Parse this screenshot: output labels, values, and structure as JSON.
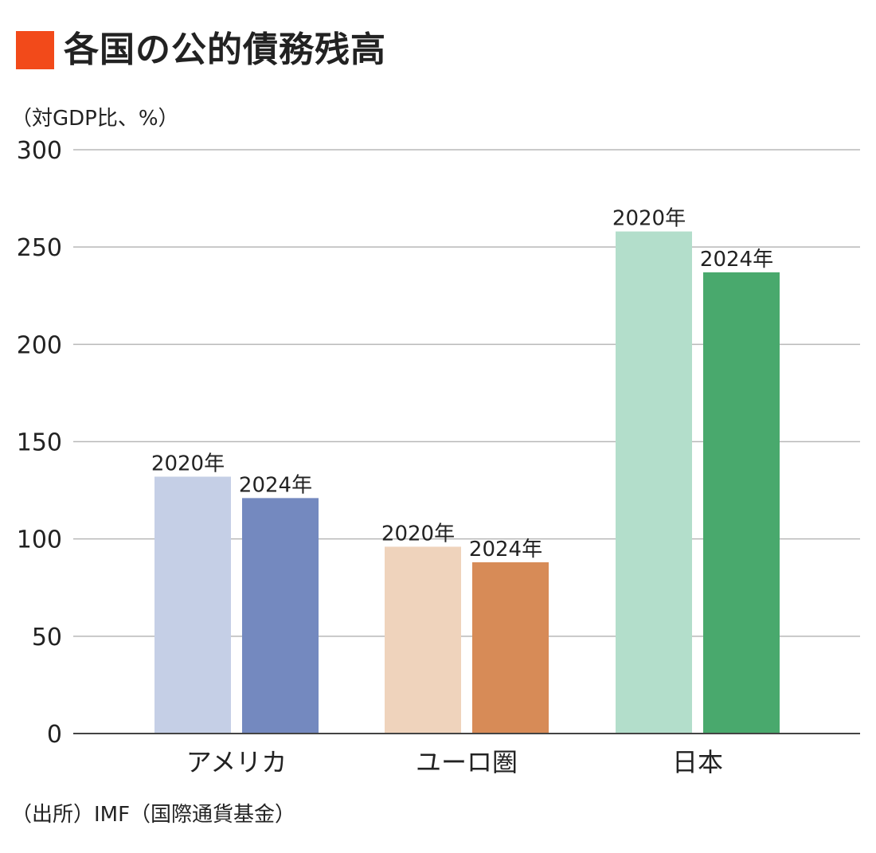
{
  "title": "各国の公的債務残高",
  "unit_label": "（対GDP比、%）",
  "source": "（出所）IMF（国際通貨基金）",
  "colors": {
    "title_marker": "#f24a1a",
    "grid": "#b8b8b8",
    "axis": "#444444"
  },
  "chart_data": {
    "type": "bar",
    "categories": [
      "アメリカ",
      "ユーロ圏",
      "日本"
    ],
    "series": [
      {
        "name": "2020年",
        "values": [
          132,
          96,
          258
        ],
        "colors": [
          "#c5cfe6",
          "#efd3bc",
          "#b3decb"
        ]
      },
      {
        "name": "2024年",
        "values": [
          121,
          88,
          237
        ],
        "colors": [
          "#7489bf",
          "#d78b57",
          "#49a96d"
        ]
      }
    ],
    "title": "各国の公的債務残高",
    "ylabel": "（対GDP比、%）",
    "ylim": [
      0,
      300
    ],
    "yticks": [
      0,
      50,
      100,
      150,
      200,
      250,
      300
    ],
    "grid": true,
    "legend": "none"
  }
}
